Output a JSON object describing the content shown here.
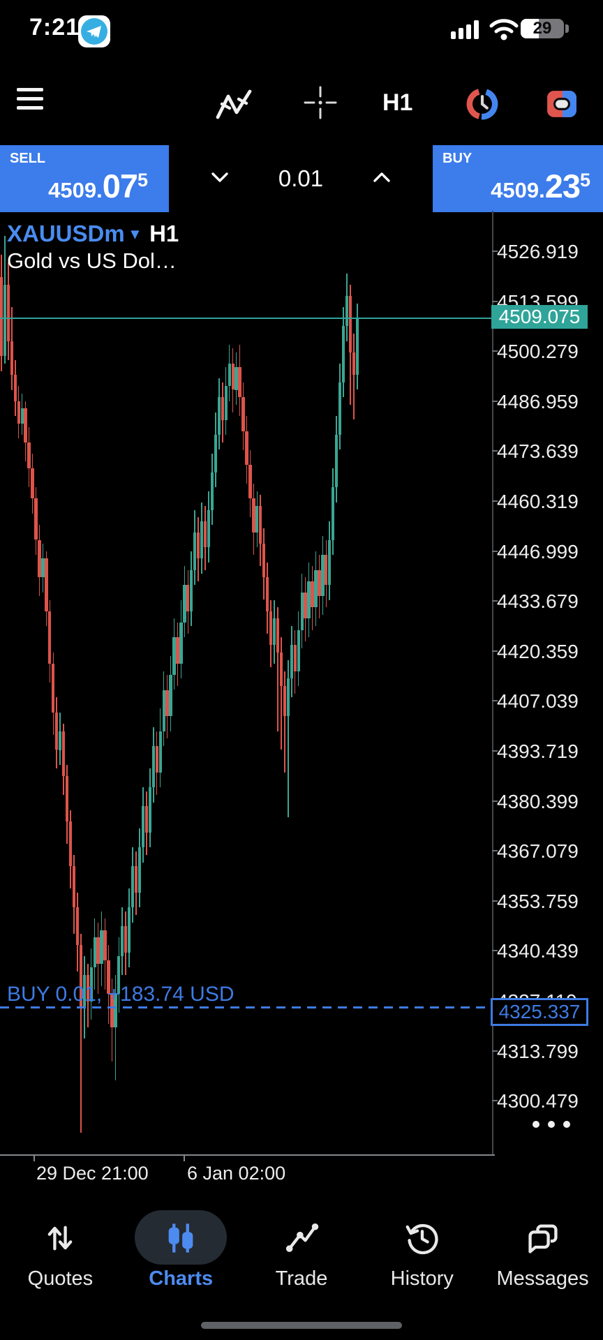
{
  "status_bar": {
    "time": "7:21",
    "battery_percent": "29"
  },
  "toolbar": {
    "timeframe": "H1"
  },
  "trade_panel": {
    "sell": {
      "label": "SELL",
      "price_main": "4509.",
      "price_big": "07",
      "price_sup": "5"
    },
    "volume": {
      "value": "0.01"
    },
    "buy": {
      "label": "BUY",
      "price_main": "4509.",
      "price_big": "23",
      "price_sup": "5"
    }
  },
  "chart_header": {
    "symbol": "XAUUSDm",
    "dropdown_icon": "▾",
    "timeframe": "H1",
    "description": "Gold vs US Dol…"
  },
  "chart_data": {
    "type": "candlestick",
    "symbol": "XAUUSDm",
    "timeframe": "H1",
    "current_price": 4509.075,
    "current_price_label": "4509.075",
    "position_line": {
      "side": "buy",
      "volume": 0.01,
      "profit_usd": 183.74,
      "price": 4325.337,
      "price_label": "4325.337",
      "label": "BUY 0.01, +183.74 USD"
    },
    "y_axis": {
      "labels": [
        "4526.919",
        "4513.599",
        "4500.279",
        "4486.959",
        "4473.639",
        "4460.319",
        "4446.999",
        "4433.679",
        "4420.359",
        "4407.039",
        "4393.719",
        "4380.399",
        "4367.079",
        "4353.759",
        "4340.439",
        "4327.119",
        "4313.799",
        "4300.479"
      ],
      "step_value": 13.32,
      "hidden_label_index": 15
    },
    "x_axis": {
      "labels": [
        "29 Dec 21:00",
        "6 Jan 02:00"
      ]
    },
    "candles": [
      [
        4520,
        4526,
        4495,
        4499
      ],
      [
        4499,
        4531,
        4497,
        4518
      ],
      [
        4518,
        4524,
        4498,
        4503
      ],
      [
        4503,
        4512,
        4490,
        4494
      ],
      [
        4494,
        4498,
        4483,
        4487
      ],
      [
        4487,
        4491,
        4477,
        4481
      ],
      [
        4481,
        4489,
        4478,
        4485
      ],
      [
        4485,
        4487,
        4471,
        4476
      ],
      [
        4476,
        4480,
        4464,
        4469
      ],
      [
        4469,
        4473,
        4457,
        4461
      ],
      [
        4461,
        4464,
        4446,
        4450
      ],
      [
        4450,
        4454,
        4435,
        4440
      ],
      [
        4440,
        4449,
        4436,
        4445
      ],
      [
        4445,
        4447,
        4427,
        4431
      ],
      [
        4431,
        4434,
        4412,
        4417
      ],
      [
        4417,
        4420,
        4398,
        4404
      ],
      [
        4404,
        4408,
        4389,
        4394
      ],
      [
        4394,
        4404,
        4390,
        4399
      ],
      [
        4399,
        4401,
        4382,
        4387
      ],
      [
        4387,
        4390,
        4369,
        4375
      ],
      [
        4375,
        4378,
        4357,
        4363
      ],
      [
        4363,
        4366,
        4345,
        4352
      ],
      [
        4352,
        4356,
        4335,
        4342
      ],
      [
        4342,
        4345,
        4292,
        4325
      ],
      [
        4325,
        4339,
        4317,
        4334
      ],
      [
        4334,
        4337,
        4320,
        4327
      ],
      [
        4327,
        4341,
        4322,
        4336
      ],
      [
        4336,
        4349,
        4330,
        4344
      ],
      [
        4344,
        4348,
        4329,
        4337
      ],
      [
        4337,
        4351,
        4331,
        4346
      ],
      [
        4346,
        4349,
        4330,
        4338
      ],
      [
        4338,
        4342,
        4321,
        4329
      ],
      [
        4329,
        4333,
        4311,
        4320
      ],
      [
        4320,
        4334,
        4306,
        4329
      ],
      [
        4329,
        4344,
        4324,
        4339
      ],
      [
        4339,
        4352,
        4334,
        4347
      ],
      [
        4347,
        4351,
        4334,
        4340
      ],
      [
        4340,
        4357,
        4336,
        4352
      ],
      [
        4352,
        4368,
        4348,
        4363
      ],
      [
        4363,
        4367,
        4350,
        4356
      ],
      [
        4356,
        4373,
        4352,
        4368
      ],
      [
        4368,
        4384,
        4364,
        4379
      ],
      [
        4379,
        4383,
        4366,
        4372
      ],
      [
        4372,
        4389,
        4368,
        4384
      ],
      [
        4384,
        4400,
        4380,
        4395
      ],
      [
        4395,
        4399,
        4382,
        4388
      ],
      [
        4388,
        4405,
        4384,
        4399
      ],
      [
        4399,
        4415,
        4395,
        4410
      ],
      [
        4410,
        4414,
        4397,
        4403
      ],
      [
        4403,
        4419,
        4399,
        4414
      ],
      [
        4414,
        4429,
        4410,
        4424
      ],
      [
        4424,
        4428,
        4411,
        4417
      ],
      [
        4417,
        4434,
        4413,
        4428
      ],
      [
        4428,
        4443,
        4424,
        4438
      ],
      [
        4438,
        4442,
        4425,
        4431
      ],
      [
        4431,
        4447,
        4427,
        4442
      ],
      [
        4442,
        4458,
        4438,
        4452
      ],
      [
        4452,
        4456,
        4439,
        4445
      ],
      [
        4445,
        4460,
        4441,
        4455
      ],
      [
        4455,
        4459,
        4442,
        4448
      ],
      [
        4448,
        4463,
        4444,
        4458
      ],
      [
        4458,
        4473,
        4454,
        4468
      ],
      [
        4468,
        4484,
        4464,
        4478
      ],
      [
        4478,
        4493,
        4474,
        4488
      ],
      [
        4488,
        4492,
        4476,
        4482
      ],
      [
        4482,
        4496,
        4478,
        4491
      ],
      [
        4491,
        4502,
        4487,
        4497
      ],
      [
        4497,
        4501,
        4484,
        4490
      ],
      [
        4490,
        4500,
        4486,
        4496
      ],
      [
        4496,
        4502,
        4483,
        4488
      ],
      [
        4488,
        4492,
        4474,
        4479
      ],
      [
        4479,
        4483,
        4465,
        4470
      ],
      [
        4470,
        4474,
        4456,
        4461
      ],
      [
        4461,
        4465,
        4446,
        4452
      ],
      [
        4452,
        4463,
        4448,
        4459
      ],
      [
        4459,
        4462,
        4443,
        4449
      ],
      [
        4449,
        4453,
        4434,
        4440
      ],
      [
        4440,
        4444,
        4425,
        4431
      ],
      [
        4431,
        4434,
        4416,
        4422
      ],
      [
        4422,
        4434,
        4417,
        4429
      ],
      [
        4429,
        4432,
        4399,
        4420
      ],
      [
        4420,
        4424,
        4394,
        4411
      ],
      [
        4411,
        4415,
        4388,
        4403
      ],
      [
        4403,
        4418,
        4376,
        4413
      ],
      [
        4413,
        4427,
        4408,
        4422
      ],
      [
        4422,
        4426,
        4409,
        4415
      ],
      [
        4415,
        4431,
        4411,
        4426
      ],
      [
        4426,
        4441,
        4421,
        4436
      ],
      [
        4436,
        4440,
        4423,
        4429
      ],
      [
        4429,
        4444,
        4424,
        4439
      ],
      [
        4439,
        4443,
        4426,
        4432
      ],
      [
        4432,
        4447,
        4427,
        4442
      ],
      [
        4442,
        4446,
        4429,
        4435
      ],
      [
        4435,
        4451,
        4430,
        4446
      ],
      [
        4446,
        4450,
        4432,
        4438
      ],
      [
        4438,
        4455,
        4434,
        4450
      ],
      [
        4450,
        4469,
        4446,
        4464
      ],
      [
        4464,
        4483,
        4460,
        4478
      ],
      [
        4478,
        4497,
        4474,
        4492
      ],
      [
        4492,
        4512,
        4488,
        4507
      ],
      [
        4507,
        4521,
        4503,
        4515
      ],
      [
        4515,
        4518,
        4486,
        4500
      ],
      [
        4500,
        4505,
        4482,
        4494
      ],
      [
        4494,
        4513,
        4490,
        4509.2
      ]
    ]
  },
  "bottom_nav": {
    "items": [
      {
        "label": "Quotes",
        "icon": "arrows-up-down-icon",
        "active": false
      },
      {
        "label": "Charts",
        "icon": "candlestick-icon",
        "active": true
      },
      {
        "label": "Trade",
        "icon": "trend-line-icon",
        "active": false
      },
      {
        "label": "History",
        "icon": "clock-history-icon",
        "active": false
      },
      {
        "label": "Messages",
        "icon": "chat-bubbles-icon",
        "active": false
      }
    ]
  },
  "colors": {
    "buy_sell_blue": "#3c7ceb",
    "accent_blue": "#4a8cef",
    "candle_up": "#3aa693",
    "candle_down": "#dd544b",
    "price_badge_teal": "#2fa499",
    "position_blue": "#3e7be4",
    "background": "#000000"
  }
}
